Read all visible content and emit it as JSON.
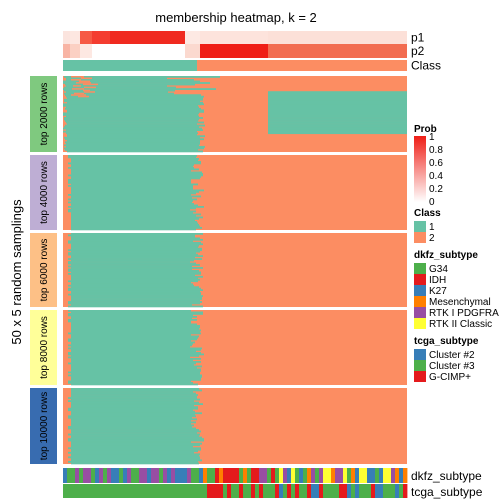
{
  "chart_data": {
    "type": "heatmap",
    "title": "membership heatmap, k = 2",
    "ylabel": "50 x 5 random samplings",
    "top_annotations": [
      "p1",
      "p2",
      "Class"
    ],
    "bottom_annotations": [
      "dkfz_subtype",
      "tcga_subtype"
    ],
    "row_groups": [
      {
        "label": "top 2000 rows",
        "color": "#7fc97f"
      },
      {
        "label": "top 4000 rows",
        "color": "#beaed4"
      },
      {
        "label": "top 6000 rows",
        "color": "#fdc086"
      },
      {
        "label": "top 8000 rows",
        "color": "#ffff99"
      },
      {
        "label": "top 10000 rows",
        "color": "#386cb0"
      }
    ],
    "class_colors": {
      "1": "#66c2a5",
      "2": "#fc8d62"
    },
    "class_split_fraction": 0.39,
    "legends": {
      "prob": {
        "title": "Prob",
        "ticks": [
          "1",
          "0.8",
          "0.6",
          "0.4",
          "0.2",
          "0"
        ]
      },
      "class": {
        "title": "Class",
        "items": [
          {
            "label": "1",
            "color": "#66c2a5"
          },
          {
            "label": "2",
            "color": "#fc8d62"
          }
        ]
      },
      "dkfz_subtype": {
        "title": "dkfz_subtype",
        "items": [
          {
            "label": "G34",
            "color": "#4daf4a"
          },
          {
            "label": "IDH",
            "color": "#e41a1c"
          },
          {
            "label": "K27",
            "color": "#377eb8"
          },
          {
            "label": "Mesenchymal",
            "color": "#ff7f00"
          },
          {
            "label": "RTK I PDGFRA",
            "color": "#984ea3"
          },
          {
            "label": "RTK II Classic",
            "color": "#ffff33"
          }
        ]
      },
      "tcga_subtype": {
        "title": "tcga_subtype",
        "items": [
          {
            "label": "Cluster #2",
            "color": "#377eb8"
          },
          {
            "label": "Cluster #3",
            "color": "#4daf4a"
          },
          {
            "label": "G-CIMP+",
            "color": "#e41a1c"
          }
        ]
      }
    }
  }
}
